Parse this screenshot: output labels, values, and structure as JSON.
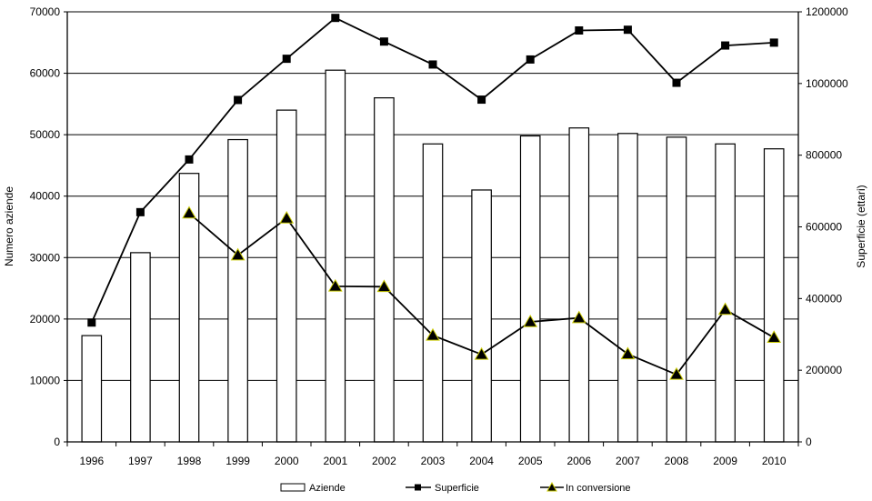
{
  "chart_data": {
    "type": "bar",
    "title": "",
    "categories": [
      "1996",
      "1997",
      "1998",
      "1999",
      "2000",
      "2001",
      "2002",
      "2003",
      "2004",
      "2005",
      "2006",
      "2007",
      "2008",
      "2009",
      "2010"
    ],
    "ylabel": "Numero aziende",
    "y2label": "Superficie (ettari)",
    "ylim": [
      0,
      70000
    ],
    "y2lim": [
      0,
      1200000
    ],
    "yticks": [
      "0",
      "10000",
      "20000",
      "30000",
      "40000",
      "50000",
      "60000",
      "70000"
    ],
    "y2ticks": [
      "0",
      "200000",
      "400000",
      "600000",
      "800000",
      "1000000",
      "1200000"
    ],
    "grid": true,
    "legend_position": "bottom",
    "series": [
      {
        "name": "Aziende",
        "type": "bar",
        "axis": "left",
        "color": "#ffffff",
        "values": [
          17300,
          30800,
          43700,
          49200,
          54000,
          60500,
          56000,
          48500,
          41000,
          49800,
          51100,
          50200,
          49600,
          48500,
          47700
        ]
      },
      {
        "name": "Superficie",
        "type": "line",
        "axis": "right",
        "marker": "square",
        "color": "#000000",
        "values": [
          333000,
          641000,
          788000,
          954000,
          1069000,
          1183000,
          1117000,
          1053000,
          955000,
          1067000,
          1148000,
          1150000,
          1002000,
          1106000,
          1114000
        ]
      },
      {
        "name": "In conversione",
        "type": "line",
        "axis": "right",
        "marker": "triangle",
        "color": "#000000",
        "marker_outline": "#c8c800",
        "values": [
          null,
          null,
          638000,
          521000,
          624000,
          434000,
          433000,
          297000,
          244000,
          335000,
          346000,
          245000,
          188000,
          369000,
          291000
        ]
      }
    ]
  }
}
